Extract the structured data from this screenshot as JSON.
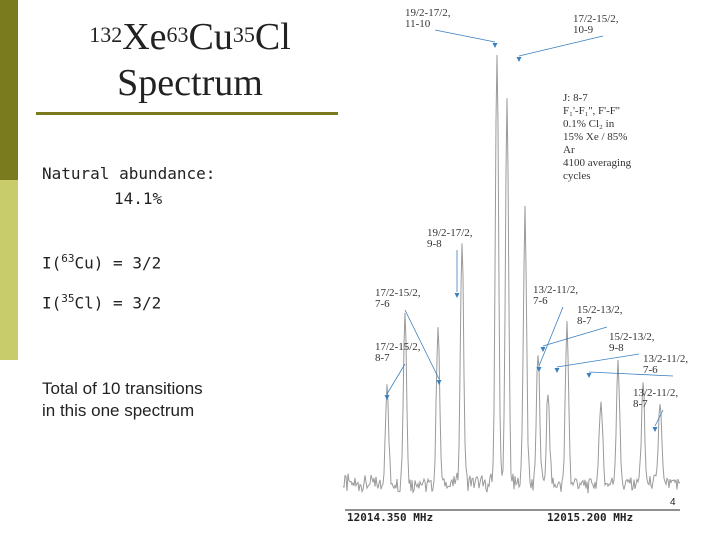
{
  "slide": {
    "title_mass1": "132",
    "title_el1": "Xe",
    "title_mass2": "63",
    "title_el2": "Cu",
    "title_mass3": "35",
    "title_el3": "Cl",
    "title_line2": "Spectrum",
    "abundance_label": "Natural abundance:",
    "abundance_value": "14.1%",
    "spin_cu_prefix": "I(",
    "spin_cu_mass": "63",
    "spin_cu_rest": "Cu) = 3/2",
    "spin_cl_prefix": "I(",
    "spin_cl_mass": "35",
    "spin_cl_rest": "Cl) = 3/2",
    "note_line1": "Total of 10 transitions",
    "note_line2": "in this one spectrum",
    "page_number": "4"
  },
  "chart_data": {
    "type": "line",
    "x_tick_labels": [
      "12014.350 MHz",
      "12015.200 MHz"
    ],
    "legend_lines": [
      "J: 8-7",
      "F₁'-F₁'', F'-F''",
      "0.1% Cl₂ in",
      "15% Xe / 85%",
      "Ar",
      "4100 averaging",
      "cycles"
    ],
    "annotations": [
      {
        "line1": "19/2-17/2,",
        "line2": "11-10"
      },
      {
        "line1": "17/2-15/2,",
        "line2": "10-9"
      },
      {
        "line1": "19/2-17/2,",
        "line2": "9-8"
      },
      {
        "line1": "17/2-15/2,",
        "line2": "7-6"
      },
      {
        "line1": "13/2-11/2,",
        "line2": "7-6"
      },
      {
        "line1": "15/2-13/2,",
        "line2": "8-7"
      },
      {
        "line1": "15/2-13/2,",
        "line2": "9-8"
      },
      {
        "line1": "17/2-15/2,",
        "line2": "8-7"
      },
      {
        "line1": "13/2-11/2,",
        "line2": "7-6"
      },
      {
        "line1": "13/2-11/2,",
        "line2": "8-7"
      }
    ],
    "peaks_relative_intensity": [
      0.22,
      0.4,
      0.36,
      0.55,
      1.0,
      0.86,
      0.62,
      0.3,
      0.2,
      0.36,
      0.2,
      0.28,
      0.22,
      0.18
    ],
    "colors": {
      "trace": "#9a9a9a",
      "arrows": "#3a7fc0"
    }
  }
}
